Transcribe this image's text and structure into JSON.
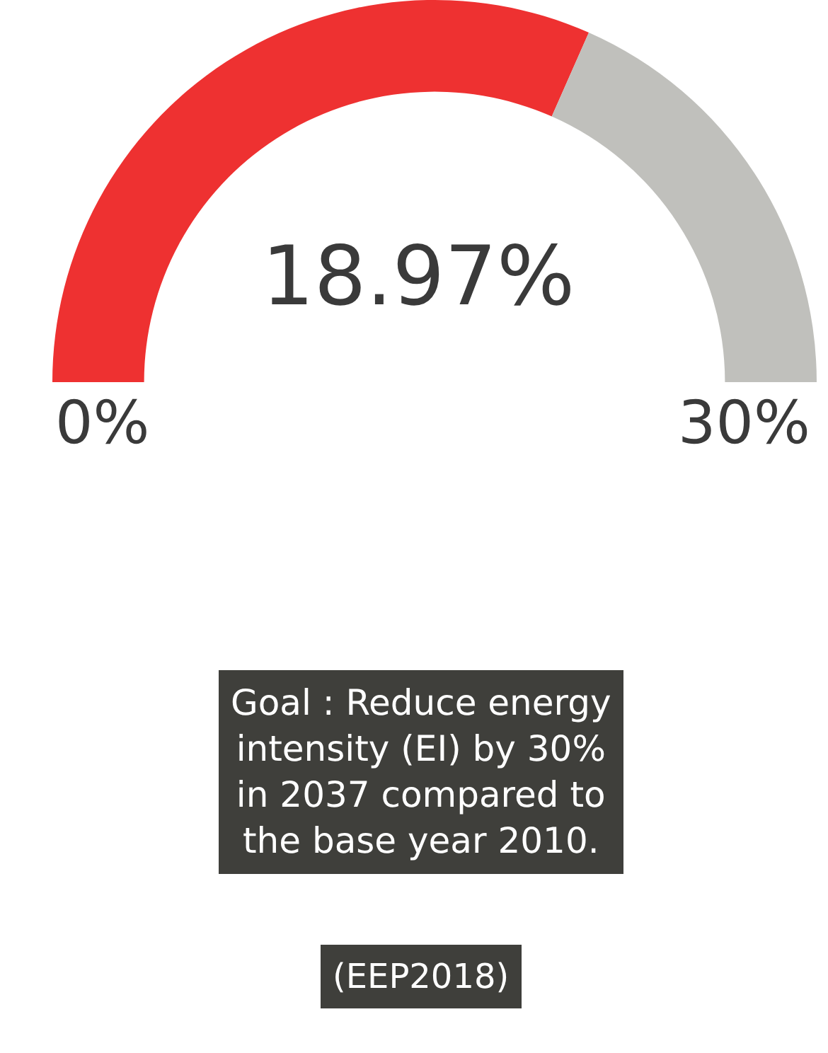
{
  "chart_data": {
    "type": "donut",
    "categories": [
      null,
      null
    ],
    "values": [
      63.23,
      36.77
    ],
    "colors": [
      "#ee3131",
      "#c0c0bc"
    ],
    "annotations": [
      "18.97%",
      "0%",
      "30%",
      "Goal : Reduce energy intensity (EI) by 30% in 2037 compared to the base year 2010.",
      "(EEP2018)"
    ]
  }
}
